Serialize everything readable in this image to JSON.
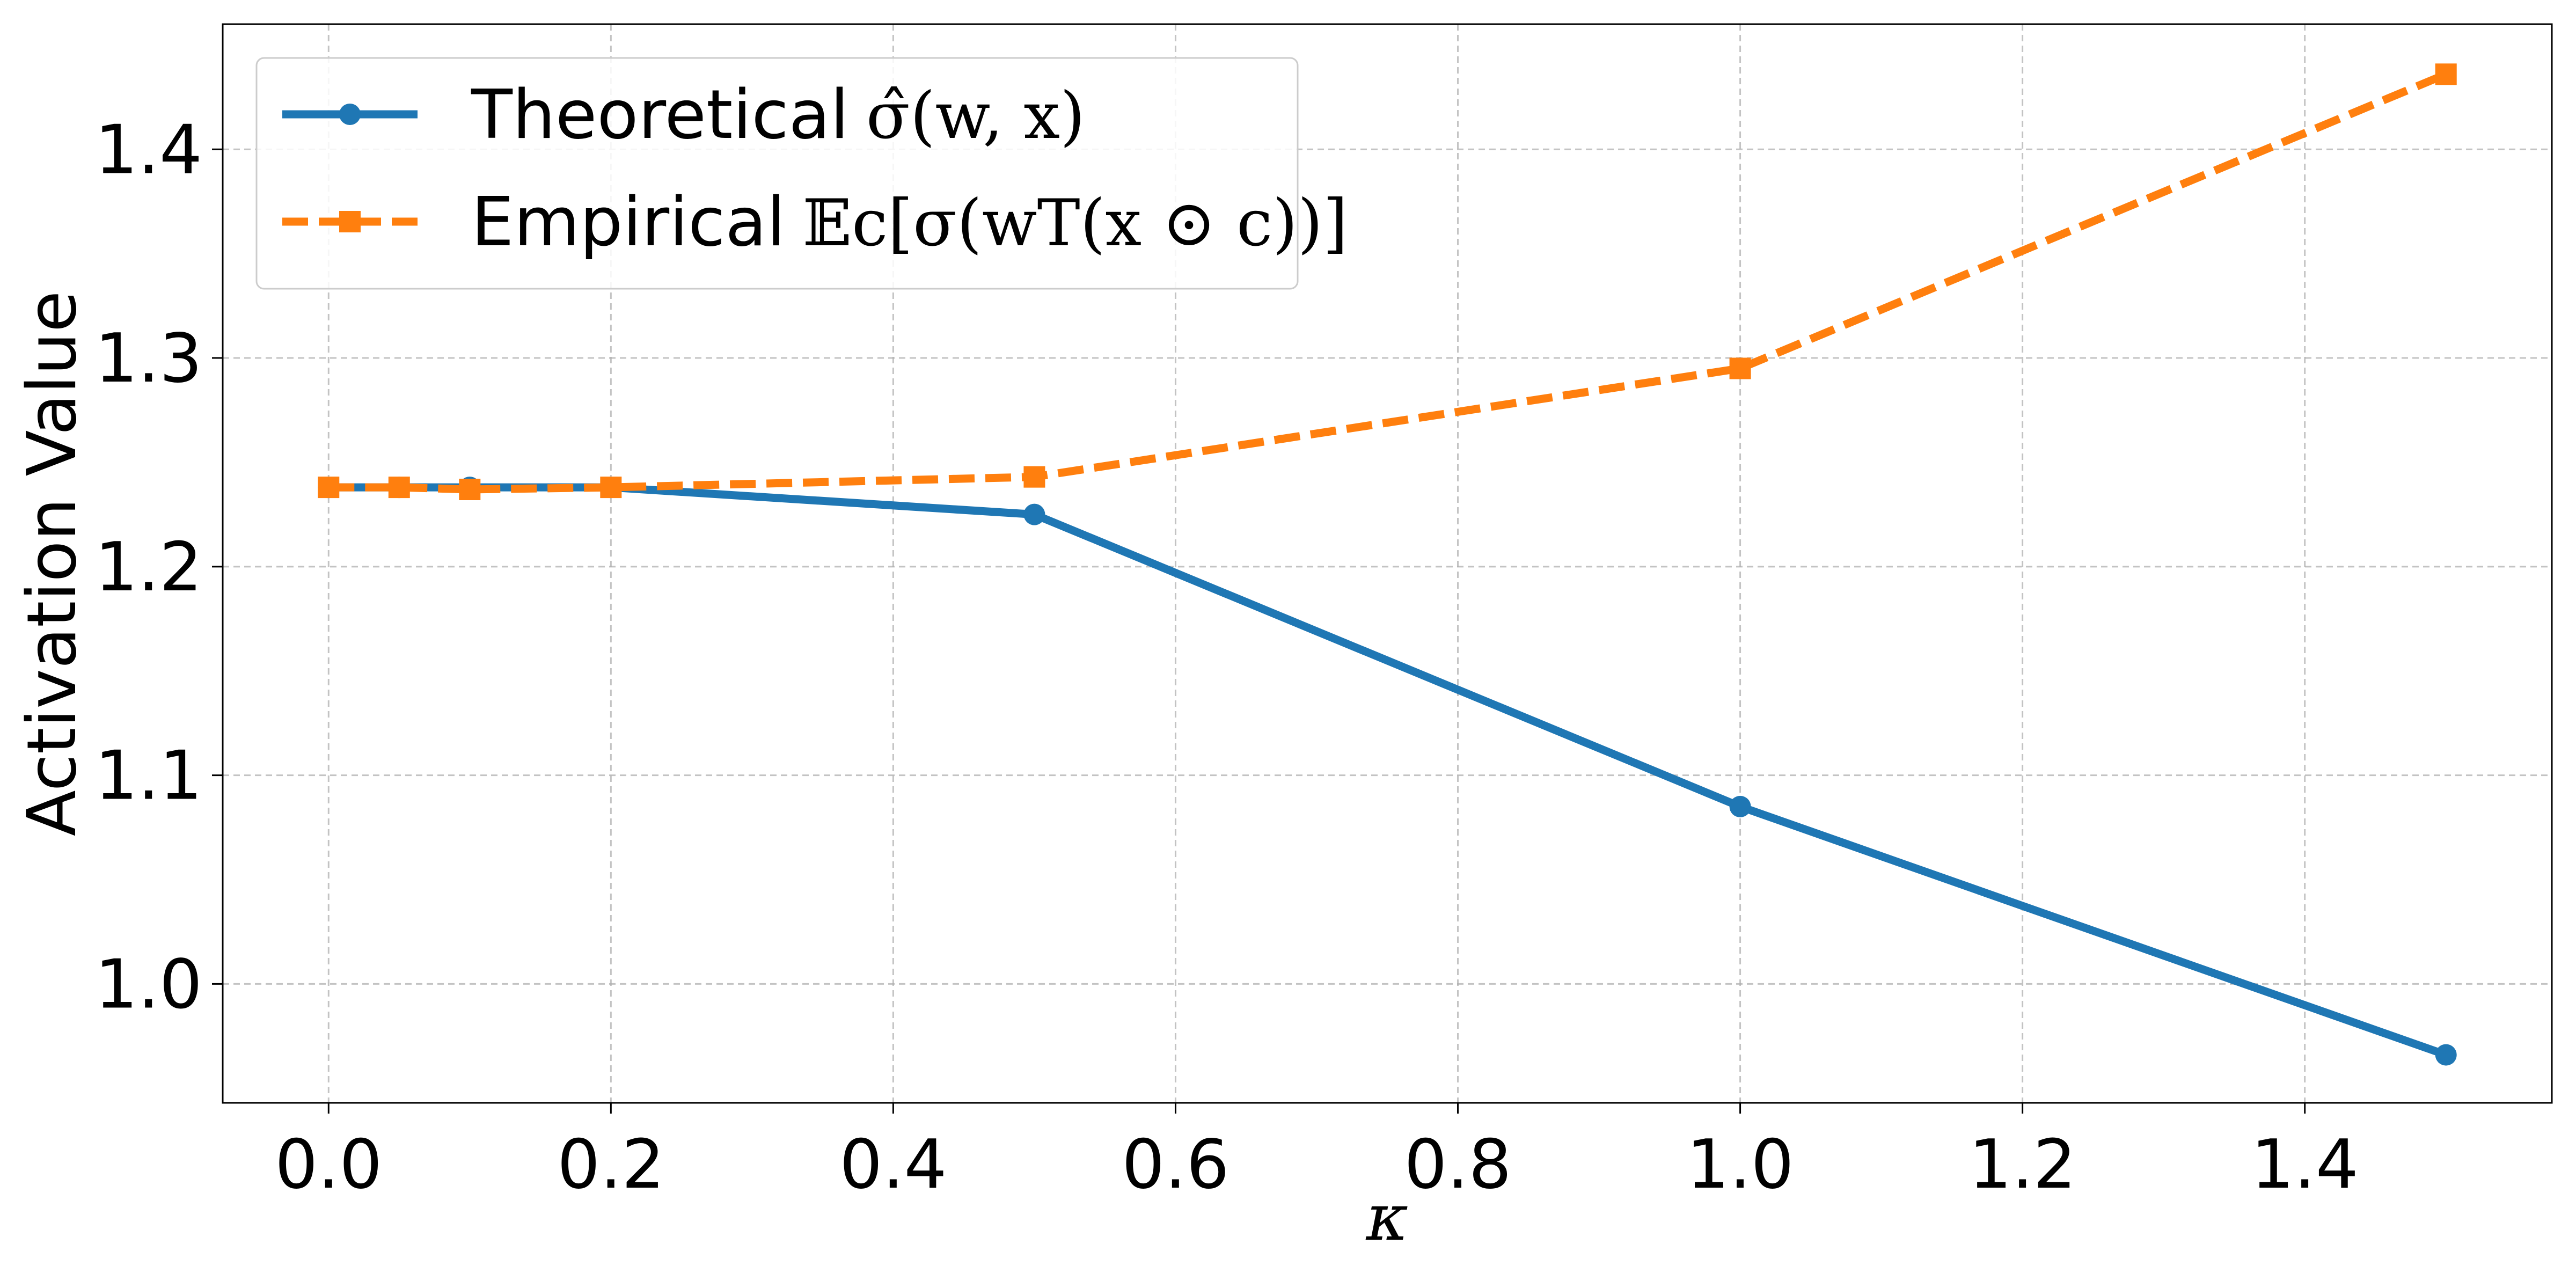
{
  "chart_data": {
    "type": "line",
    "title": "",
    "xlabel": "κ",
    "ylabel": "Activation Value",
    "xlim": [
      -0.075,
      1.575
    ],
    "ylim": [
      0.943,
      1.46
    ],
    "x_ticks": [
      0.0,
      0.2,
      0.4,
      0.6,
      0.8,
      1.0,
      1.2,
      1.4
    ],
    "x_tick_labels": [
      "0.0",
      "0.2",
      "0.4",
      "0.6",
      "0.8",
      "1.0",
      "1.2",
      "1.4"
    ],
    "y_ticks": [
      1.0,
      1.1,
      1.2,
      1.3,
      1.4
    ],
    "y_tick_labels": [
      "1.0",
      "1.1",
      "1.2",
      "1.3",
      "1.4"
    ],
    "grid": true,
    "legend_position": "top-left",
    "series": [
      {
        "name": "Theoretical σ̂(w, x)",
        "name_text": "Theoretical",
        "name_math": "σ̂(w, x)",
        "color": "#1f77b4",
        "line_style": "solid",
        "marker": "circle",
        "x": [
          0.0,
          0.05,
          0.1,
          0.2,
          0.5,
          1.0,
          1.5
        ],
        "y": [
          1.238,
          1.238,
          1.238,
          1.238,
          1.225,
          1.085,
          0.966
        ]
      },
      {
        "name": "Empirical 𝔼c[σ(wT(x ⊙ c))]",
        "name_text": "Empirical",
        "name_math": "𝔼c[σ(wT(x ⊙ c))]",
        "color": "#ff7f0e",
        "line_style": "dashed",
        "marker": "square",
        "x": [
          0.0,
          0.05,
          0.1,
          0.2,
          0.5,
          1.0,
          1.5
        ],
        "y": [
          1.238,
          1.238,
          1.237,
          1.238,
          1.243,
          1.295,
          1.436
        ]
      }
    ]
  }
}
